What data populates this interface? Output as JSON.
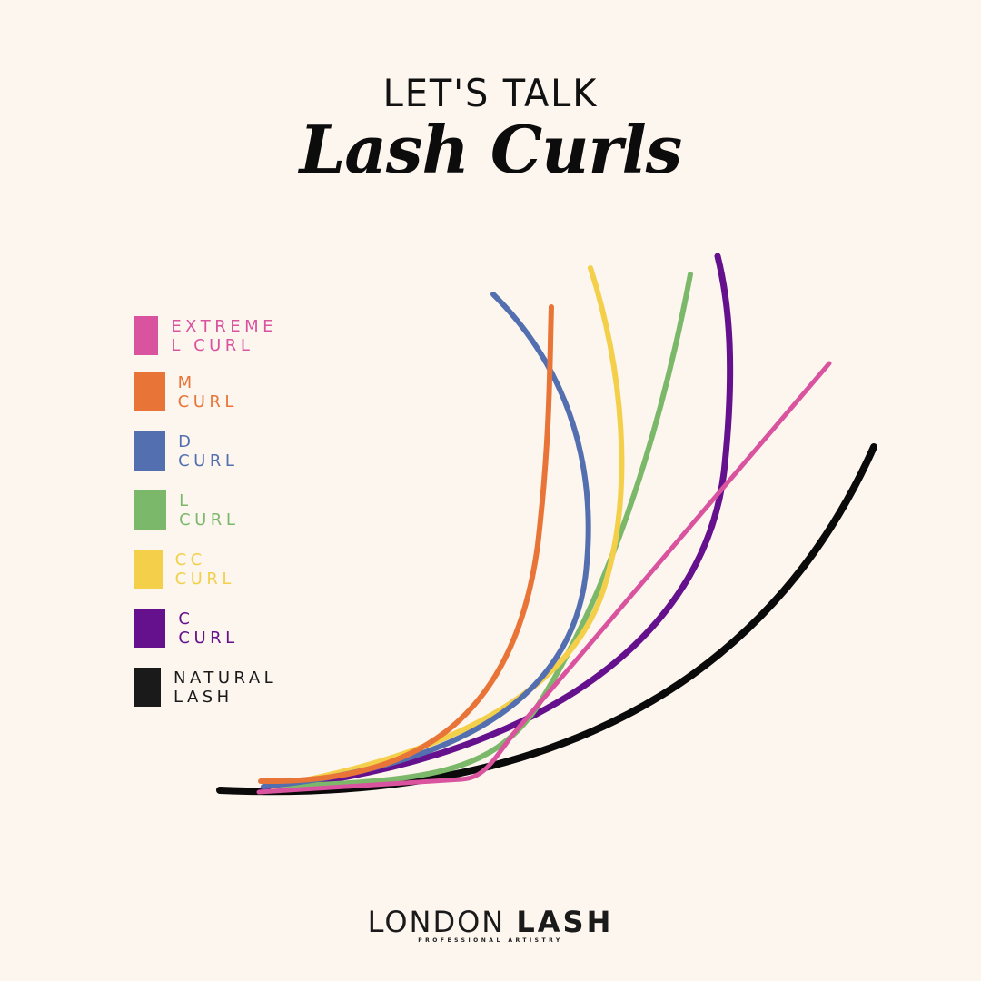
{
  "header": {
    "kicker": "LET'S TALK",
    "title": "Lash Curls"
  },
  "legend": [
    {
      "label": "EXTREME L CURL",
      "color": "#d9539f"
    },
    {
      "label": "M CURL",
      "color": "#e87537"
    },
    {
      "label": "D CURL",
      "color": "#546fb0"
    },
    {
      "label": "L CURL",
      "color": "#7cb86a"
    },
    {
      "label": "CC CURL",
      "color": "#f4cf4a"
    },
    {
      "label": "C CURL",
      "color": "#65108c"
    },
    {
      "label": "NATURAL LASH",
      "color": "#1a1a1a"
    }
  ],
  "logo": {
    "name_light": "LONDON",
    "name_bold": "LASH",
    "tagline": "PROFESSIONAL ARTISTRY"
  }
}
